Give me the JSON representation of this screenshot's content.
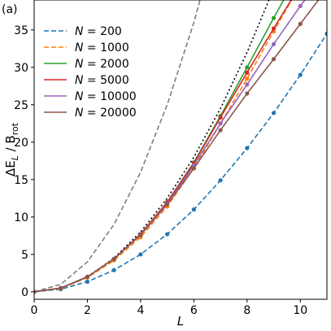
{
  "chart_data": {
    "type": "line",
    "panel_label": "(a)",
    "xlabel": "L",
    "ylabel": "ΔE_L / B_rot",
    "xlim": [
      0,
      11
    ],
    "ylim": [
      -1,
      39
    ],
    "xticks": [
      0,
      2,
      4,
      6,
      8,
      10
    ],
    "yticks": [
      0,
      5,
      10,
      15,
      20,
      25,
      30,
      35
    ],
    "grid": false,
    "legend": {
      "position": "top-left"
    },
    "series": [
      {
        "name": "N = 200",
        "color": "#1f77b4",
        "dash": "dashed",
        "markers": true,
        "x": [
          0,
          1,
          2,
          3,
          4,
          5,
          6,
          7,
          8,
          9,
          10,
          11
        ],
        "y": [
          0,
          0.35,
          1.35,
          2.9,
          5.0,
          7.7,
          11.0,
          14.9,
          19.2,
          23.9,
          29.0,
          34.5
        ]
      },
      {
        "name": "N = 1000",
        "color": "#ff7f0e",
        "dash": "dashed",
        "markers": true,
        "x": [
          0,
          1,
          2,
          3,
          4,
          5,
          6,
          7,
          8,
          9,
          10
        ],
        "y": [
          0,
          0.45,
          1.9,
          4.2,
          7.3,
          11.4,
          16.5,
          22.5,
          28.5,
          34.8,
          41
        ]
      },
      {
        "name": "N = 2000",
        "color": "#2ca02c",
        "dash": "solid",
        "markers": true,
        "x": [
          0,
          1,
          2,
          3,
          4,
          5,
          6,
          7,
          8,
          9,
          10
        ],
        "y": [
          0,
          0.5,
          2.0,
          4.4,
          7.7,
          12.0,
          17.3,
          23.5,
          30.0,
          36.6,
          43
        ]
      },
      {
        "name": "N = 5000",
        "color": "#d62728",
        "dash": "solid",
        "markers": true,
        "x": [
          0,
          1,
          2,
          3,
          4,
          5,
          6,
          7,
          8,
          9,
          10
        ],
        "y": [
          0,
          0.5,
          2.0,
          4.4,
          7.7,
          12.0,
          17.2,
          23.3,
          29.3,
          35.2,
          41
        ]
      },
      {
        "name": "N = 10000",
        "color": "#9467bd",
        "dash": "solid",
        "markers": true,
        "x": [
          0,
          1,
          2,
          3,
          4,
          5,
          6,
          7,
          8,
          9,
          10,
          11
        ],
        "y": [
          0,
          0.5,
          2.0,
          4.4,
          7.6,
          11.8,
          16.9,
          22.5,
          27.7,
          33.1,
          38.2,
          43
        ]
      },
      {
        "name": "N = 20000",
        "color": "#8c564b",
        "dash": "solid",
        "markers": true,
        "x": [
          0,
          1,
          2,
          3,
          4,
          5,
          6,
          7,
          8,
          9,
          10,
          11
        ],
        "y": [
          0,
          0.5,
          2.0,
          4.4,
          7.6,
          11.7,
          16.5,
          21.6,
          26.5,
          31.1,
          35.8,
          40.5
        ]
      },
      {
        "color": "#7f7f7f",
        "dash": "dashed",
        "markers": false,
        "x": [
          0,
          1,
          2,
          3,
          4,
          5,
          6,
          7
        ],
        "y": [
          0,
          1.0,
          4.0,
          9.0,
          16.0,
          25.0,
          36.0,
          49.0
        ]
      },
      {
        "color": "#000000",
        "dash": "dotted",
        "markers": false,
        "x": [
          0,
          1,
          2,
          3,
          4,
          5,
          6,
          7,
          8,
          9
        ],
        "y": [
          0,
          0.5,
          2.0,
          4.5,
          8.0,
          12.5,
          18.0,
          24.5,
          32.0,
          40.5
        ]
      }
    ]
  }
}
